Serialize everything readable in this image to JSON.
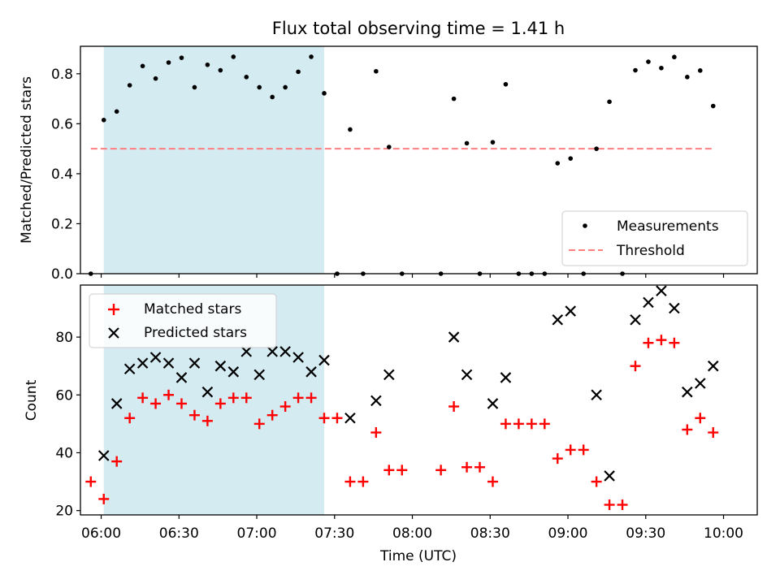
{
  "chart_data": {
    "type": "scatter",
    "title": "Flux total observing time = 1.41 h",
    "xlabel": "Time (UTC)",
    "x_tick_labels": [
      "06:00",
      "06:30",
      "07:00",
      "07:30",
      "08:00",
      "08:30",
      "09:00",
      "09:30",
      "10:00"
    ],
    "x_ticks_minutes": [
      360,
      390,
      420,
      450,
      480,
      510,
      540,
      570,
      600
    ],
    "xlim_minutes": [
      352,
      613
    ],
    "shaded_interval": {
      "start": "06:01",
      "end": "07:26",
      "color": "#add8e6"
    },
    "top_panel": {
      "ylabel": "Matched/Predicted stars",
      "ylim": [
        0,
        0.91
      ],
      "y_ticks": [
        "0.0",
        "0.2",
        "0.4",
        "0.6",
        "0.8"
      ],
      "legend_position": "lower right",
      "series": [
        {
          "name": "Measurements",
          "color": "#000000",
          "marker": "dot",
          "points": [
            [
              "05:56",
              0.0
            ],
            [
              "06:01",
              0.615
            ],
            [
              "06:06",
              0.649
            ],
            [
              "06:11",
              0.754
            ],
            [
              "06:16",
              0.831
            ],
            [
              "06:21",
              0.781
            ],
            [
              "06:26",
              0.845
            ],
            [
              "06:31",
              0.864
            ],
            [
              "06:36",
              0.746
            ],
            [
              "06:41",
              0.836
            ],
            [
              "06:46",
              0.814
            ],
            [
              "06:51",
              0.868
            ],
            [
              "06:56",
              0.787
            ],
            [
              "07:01",
              0.746
            ],
            [
              "07:06",
              0.707
            ],
            [
              "07:11",
              0.746
            ],
            [
              "07:16",
              0.808
            ],
            [
              "07:21",
              0.868
            ],
            [
              "07:26",
              0.722
            ],
            [
              "07:31",
              0.0
            ],
            [
              "07:36",
              0.577
            ],
            [
              "07:41",
              0.0
            ],
            [
              "07:46",
              0.81
            ],
            [
              "07:51",
              0.507
            ],
            [
              "07:56",
              0.0
            ],
            [
              "08:11",
              0.0
            ],
            [
              "08:16",
              0.7
            ],
            [
              "08:21",
              0.522
            ],
            [
              "08:26",
              0.0
            ],
            [
              "08:31",
              0.526
            ],
            [
              "08:36",
              0.758
            ],
            [
              "08:41",
              0.0
            ],
            [
              "08:46",
              0.0
            ],
            [
              "08:51",
              0.0
            ],
            [
              "08:56",
              0.442
            ],
            [
              "09:01",
              0.461
            ],
            [
              "09:06",
              0.0
            ],
            [
              "09:11",
              0.5
            ],
            [
              "09:16",
              0.688
            ],
            [
              "09:21",
              0.0
            ],
            [
              "09:26",
              0.814
            ],
            [
              "09:31",
              0.848
            ],
            [
              "09:36",
              0.823
            ],
            [
              "09:41",
              0.867
            ],
            [
              "09:46",
              0.787
            ],
            [
              "09:51",
              0.813
            ],
            [
              "09:56",
              0.671
            ]
          ]
        },
        {
          "name": "Threshold",
          "color": "#ff7f7f",
          "style": "dashed",
          "x_range": [
            "05:56",
            "09:56"
          ],
          "value": 0.5
        }
      ]
    },
    "bottom_panel": {
      "ylabel": "Count",
      "ylim": [
        18.5,
        98
      ],
      "y_ticks": [
        "20",
        "40",
        "60",
        "80"
      ],
      "legend_position": "upper left",
      "series": [
        {
          "name": "Matched stars",
          "color": "#ff0000",
          "marker": "plus",
          "points": [
            [
              "05:56",
              30
            ],
            [
              "06:01",
              24
            ],
            [
              "06:06",
              37
            ],
            [
              "06:11",
              52
            ],
            [
              "06:16",
              59
            ],
            [
              "06:21",
              57
            ],
            [
              "06:26",
              60
            ],
            [
              "06:31",
              57
            ],
            [
              "06:36",
              53
            ],
            [
              "06:41",
              51
            ],
            [
              "06:46",
              57
            ],
            [
              "06:51",
              59
            ],
            [
              "06:56",
              59
            ],
            [
              "07:01",
              50
            ],
            [
              "07:06",
              53
            ],
            [
              "07:11",
              56
            ],
            [
              "07:16",
              59
            ],
            [
              "07:21",
              59
            ],
            [
              "07:26",
              52
            ],
            [
              "07:31",
              52
            ],
            [
              "07:36",
              30
            ],
            [
              "07:41",
              30
            ],
            [
              "07:46",
              47
            ],
            [
              "07:51",
              34
            ],
            [
              "07:56",
              34
            ],
            [
              "08:11",
              34
            ],
            [
              "08:16",
              56
            ],
            [
              "08:21",
              35
            ],
            [
              "08:26",
              35
            ],
            [
              "08:31",
              30
            ],
            [
              "08:36",
              50
            ],
            [
              "08:41",
              50
            ],
            [
              "08:46",
              50
            ],
            [
              "08:51",
              50
            ],
            [
              "08:56",
              38
            ],
            [
              "09:01",
              41
            ],
            [
              "09:06",
              41
            ],
            [
              "09:11",
              30
            ],
            [
              "09:16",
              22
            ],
            [
              "09:21",
              22
            ],
            [
              "09:26",
              70
            ],
            [
              "09:31",
              78
            ],
            [
              "09:36",
              79
            ],
            [
              "09:41",
              78
            ],
            [
              "09:46",
              48
            ],
            [
              "09:51",
              52
            ],
            [
              "09:56",
              47
            ]
          ]
        },
        {
          "name": "Predicted stars",
          "color": "#000000",
          "marker": "x",
          "points": [
            [
              "06:01",
              39
            ],
            [
              "06:06",
              57
            ],
            [
              "06:11",
              69
            ],
            [
              "06:16",
              71
            ],
            [
              "06:21",
              73
            ],
            [
              "06:26",
              71
            ],
            [
              "06:31",
              66
            ],
            [
              "06:36",
              71
            ],
            [
              "06:41",
              61
            ],
            [
              "06:46",
              70
            ],
            [
              "06:51",
              68
            ],
            [
              "06:56",
              75
            ],
            [
              "07:01",
              67
            ],
            [
              "07:06",
              75
            ],
            [
              "07:11",
              75
            ],
            [
              "07:16",
              73
            ],
            [
              "07:21",
              68
            ],
            [
              "07:26",
              72
            ],
            [
              "07:36",
              52
            ],
            [
              "07:46",
              58
            ],
            [
              "07:51",
              67
            ],
            [
              "08:16",
              80
            ],
            [
              "08:21",
              67
            ],
            [
              "08:31",
              57
            ],
            [
              "08:36",
              66
            ],
            [
              "08:56",
              86
            ],
            [
              "09:01",
              89
            ],
            [
              "09:11",
              60
            ],
            [
              "09:16",
              32
            ],
            [
              "09:26",
              86
            ],
            [
              "09:31",
              92
            ],
            [
              "09:36",
              96
            ],
            [
              "09:41",
              90
            ],
            [
              "09:46",
              61
            ],
            [
              "09:51",
              64
            ],
            [
              "09:56",
              70
            ]
          ]
        }
      ]
    }
  }
}
